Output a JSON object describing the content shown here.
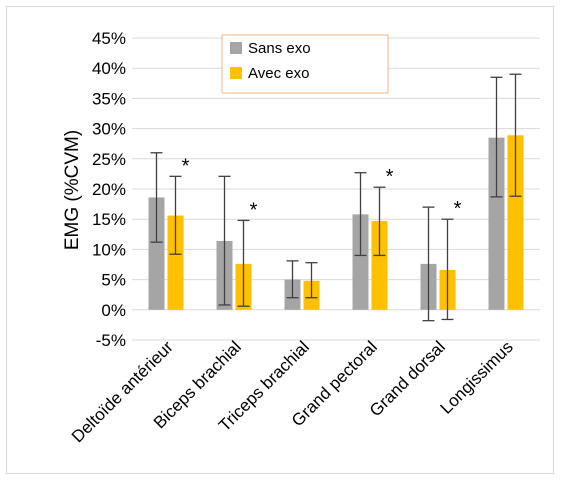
{
  "chart_data": {
    "type": "bar",
    "ylabel": "EMG (%CVM)",
    "ylim": [
      -0.05,
      0.45
    ],
    "ytick_step": 0.05,
    "grid": true,
    "legend_position": "top-center",
    "categories": [
      "Deltoïde antérieur",
      "Biceps brachial",
      "Triceps brachial",
      "Grand pectoral",
      "Grand dorsal",
      "Longissimus"
    ],
    "series": [
      {
        "name": "Sans exo",
        "color": "#a5a5a5",
        "values": [
          0.186,
          0.114,
          0.05,
          0.158,
          0.076,
          0.285
        ],
        "error_low": [
          0.112,
          0.008,
          0.02,
          0.09,
          -0.018,
          0.187
        ],
        "error_high": [
          0.26,
          0.221,
          0.081,
          0.227,
          0.17,
          0.385
        ]
      },
      {
        "name": "Avec exo",
        "color": "#ffc000",
        "values": [
          0.156,
          0.076,
          0.048,
          0.147,
          0.066,
          0.289
        ],
        "error_low": [
          0.092,
          0.006,
          0.02,
          0.09,
          -0.016,
          0.188
        ],
        "error_high": [
          0.221,
          0.148,
          0.078,
          0.203,
          0.15,
          0.39
        ]
      }
    ],
    "significance_marker": "*",
    "significant_categories": [
      "Deltoïde antérieur",
      "Biceps brachial",
      "Grand pectoral",
      "Grand dorsal"
    ]
  }
}
